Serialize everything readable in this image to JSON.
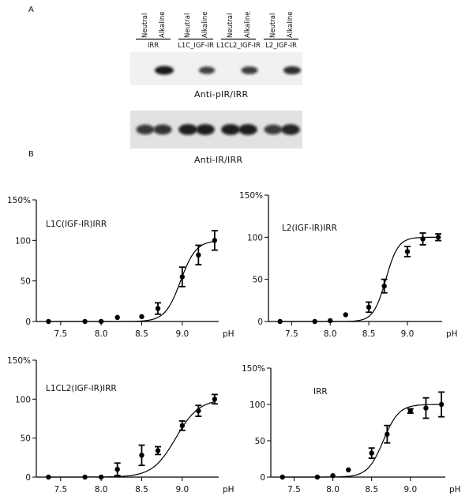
{
  "panel_a": {
    "letter": "A",
    "lane_labels": [
      "Neutral",
      "Alkaline",
      "Neutral",
      "Alkaline",
      "Neutral",
      "Alkaline",
      "Neutral",
      "Alkaline"
    ],
    "group_labels": [
      "IRR",
      "L1C_IGF-IR",
      "L1CL2_IGF-IR",
      "L2_IGF-IR"
    ],
    "blot1_label": "Anti-pIR/IRR",
    "blot2_label": "Anti-IR/IRR",
    "blot1_band_intensity": [
      0,
      1.0,
      0,
      0.7,
      0,
      0.75,
      0,
      0.85
    ],
    "blot2_band_intensity": [
      0.75,
      0.8,
      0.95,
      0.95,
      0.95,
      0.95,
      0.75,
      0.9
    ]
  },
  "panel_b": {
    "letter": "B"
  },
  "chart_data": [
    {
      "type": "line",
      "title": "L1C(IGF-IR)IRR",
      "xlabel": "pH",
      "ylabel": "",
      "xlim": [
        7.2,
        9.45
      ],
      "ylim": [
        0,
        150
      ],
      "xticks": [
        "7.5",
        "8.0",
        "8.5",
        "9.0"
      ],
      "yticks": [
        "0",
        "50",
        "100",
        "150%"
      ],
      "grid": false,
      "series": [
        {
          "x": [
            7.35,
            7.8,
            8.0,
            8.2,
            8.5,
            8.7,
            9.0,
            9.2,
            9.4
          ],
          "y": [
            0,
            0,
            0,
            5,
            6,
            16,
            55,
            82,
            100
          ],
          "error": [
            0,
            0,
            0,
            0,
            0,
            7,
            12,
            12,
            12
          ]
        }
      ]
    },
    {
      "type": "line",
      "title": "L2(IGF-IR)IRR",
      "xlabel": "pH",
      "ylabel": "",
      "xlim": [
        7.2,
        9.45
      ],
      "ylim": [
        0,
        150
      ],
      "xticks": [
        "7.5",
        "8.0",
        "8.5",
        "9.0"
      ],
      "yticks": [
        "0",
        "50",
        "100",
        "150%"
      ],
      "grid": false,
      "series": [
        {
          "x": [
            7.35,
            7.8,
            8.0,
            8.2,
            8.5,
            8.7,
            9.0,
            9.2,
            9.4
          ],
          "y": [
            0,
            0,
            1,
            8,
            17,
            42,
            83,
            98,
            100
          ],
          "error": [
            0,
            0,
            0,
            0,
            6,
            8,
            6,
            7,
            4
          ]
        }
      ]
    },
    {
      "type": "line",
      "title": "L1CL2(IGF-IR)IRR",
      "xlabel": "pH",
      "ylabel": "",
      "xlim": [
        7.2,
        9.45
      ],
      "ylim": [
        0,
        150
      ],
      "xticks": [
        "7.5",
        "8.0",
        "8.5",
        "9.0"
      ],
      "yticks": [
        "0",
        "50",
        "100",
        "150%"
      ],
      "grid": false,
      "series": [
        {
          "x": [
            7.35,
            7.8,
            8.0,
            8.2,
            8.5,
            8.7,
            9.0,
            9.2,
            9.4
          ],
          "y": [
            0,
            0,
            0,
            10,
            28,
            34,
            66,
            85,
            100
          ],
          "error": [
            0,
            0,
            0,
            8,
            13,
            5,
            6,
            7,
            6
          ]
        }
      ]
    },
    {
      "type": "line",
      "title": "IRR",
      "xlabel": "pH",
      "ylabel": "",
      "xlim": [
        7.2,
        9.45
      ],
      "ylim": [
        0,
        150
      ],
      "xticks": [
        "7.5",
        "8.0",
        "8.5",
        "9.0"
      ],
      "yticks": [
        "0",
        "50",
        "100",
        "150%"
      ],
      "grid": false,
      "series": [
        {
          "x": [
            7.35,
            7.8,
            8.0,
            8.2,
            8.5,
            8.7,
            9.0,
            9.2,
            9.4
          ],
          "y": [
            0,
            0,
            2,
            10,
            33,
            59,
            91,
            95,
            100
          ],
          "error": [
            0,
            0,
            0,
            0,
            7,
            12,
            3,
            14,
            17
          ]
        }
      ]
    }
  ]
}
